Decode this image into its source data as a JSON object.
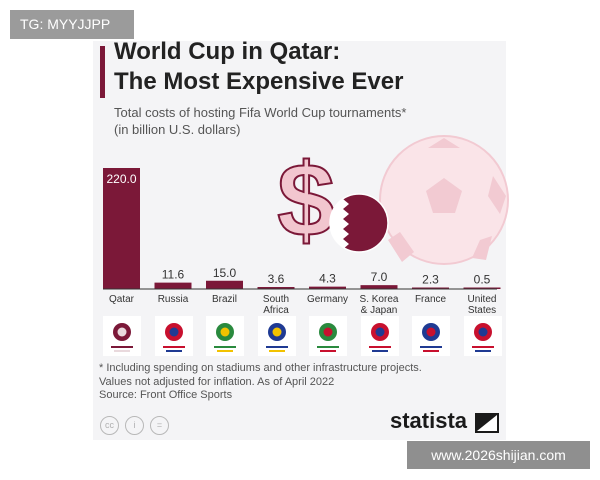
{
  "corner_tag": "TG: MYYJJPP",
  "title": "World Cup in Qatar:\nThe Most Expensive Ever",
  "subtitle": "Total costs of hosting Fifa World Cup tournaments*\n(in billion U.S. dollars)",
  "footnote": "* Including spending on stadiums and other infrastructure projects.\n   Values not adjusted for inflation. As of April 2022",
  "source": "Source: Front Office Sports",
  "brand": "statista",
  "watermark": "www.2026shijian.com",
  "colors": {
    "bar": "#7b1838",
    "accent_pink": "#f2c6cf",
    "background": "#f4f4f6"
  },
  "icons": [
    "dollar-sign-icon",
    "qatar-flag-icon",
    "football-icon",
    "world-cup-emblem-icons",
    "creative-commons-icons"
  ],
  "chart_data": {
    "type": "bar",
    "categories": [
      "Qatar",
      "Russia",
      "Brazil",
      "South\nAfrica",
      "Germany",
      "S. Korea\n& Japan",
      "France",
      "United\nStates"
    ],
    "values": [
      220.0,
      11.6,
      15.0,
      3.6,
      4.3,
      7.0,
      2.3,
      0.5
    ],
    "value_labels": [
      "220.0",
      "11.6",
      "15.0",
      "3.6",
      "4.3",
      "7.0",
      "2.3",
      "0.5"
    ],
    "title": "World Cup in Qatar: The Most Expensive Ever",
    "ylim": [
      0,
      220
    ],
    "grid": false,
    "legend": "none"
  }
}
